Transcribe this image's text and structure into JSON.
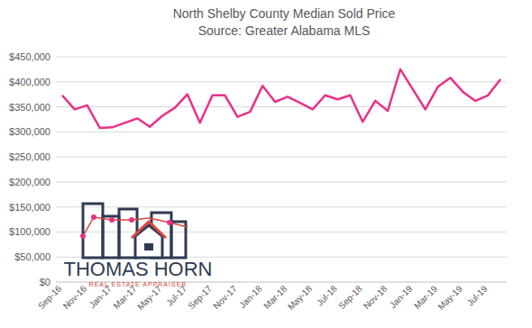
{
  "chart_data": {
    "type": "line",
    "title": "North Shelby County Median Sold Price",
    "subtitle": "Source: Greater Alabama MLS",
    "annotations": [
      "THOMAS HORN",
      "REAL ESTATE APPRAISER"
    ],
    "categories": [
      "Sep-16",
      null,
      "Nov-16",
      null,
      "Jan-17",
      null,
      "Mar-17",
      null,
      "May-17",
      null,
      "Jul-17",
      null,
      "Sep-17",
      null,
      "Nov-17",
      null,
      "Jan-18",
      null,
      "Mar-18",
      null,
      "May-18",
      null,
      "Jul-18",
      null,
      "Sep-18",
      null,
      "Nov-18",
      null,
      "Jan-19",
      null,
      "Mar-19",
      null,
      "May-19",
      null,
      "Jul-19",
      null
    ],
    "values": [
      373000,
      345000,
      353000,
      308000,
      309000,
      318000,
      327000,
      310000,
      332000,
      348000,
      375000,
      318000,
      373000,
      373000,
      330000,
      340000,
      392000,
      360000,
      370000,
      358000,
      345000,
      373000,
      365000,
      373000,
      320000,
      362000,
      342000,
      425000,
      385000,
      345000,
      390000,
      408000,
      380000,
      362000,
      373000,
      405000
    ],
    "color": "#e8318a",
    "ylim": [
      0,
      450000
    ],
    "yticks": [
      {
        "value": 0,
        "label": "$0"
      },
      {
        "value": 50000,
        "label": "$50,000"
      },
      {
        "value": 100000,
        "label": "$100,000"
      },
      {
        "value": 150000,
        "label": "$150,000"
      },
      {
        "value": 200000,
        "label": "$200,000"
      },
      {
        "value": 250000,
        "label": "$250,000"
      },
      {
        "value": 300000,
        "label": "$300,000"
      },
      {
        "value": 350000,
        "label": "$350,000"
      },
      {
        "value": 400000,
        "label": "$400,000"
      },
      {
        "value": 450000,
        "label": "$450,000"
      }
    ],
    "grid": true
  }
}
